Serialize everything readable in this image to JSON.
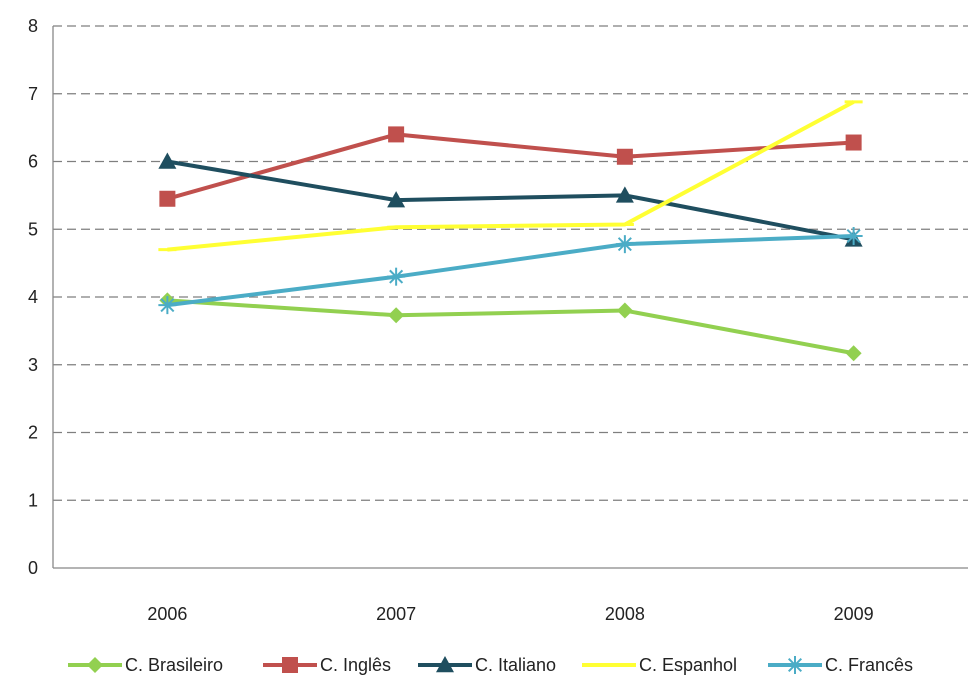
{
  "chart_data": {
    "type": "line",
    "title": "",
    "xlabel": "",
    "ylabel": "",
    "categories": [
      "2006",
      "2007",
      "2008",
      "2009"
    ],
    "ylim": [
      0,
      8
    ],
    "yticks": [
      "0",
      "1",
      "2",
      "3",
      "4",
      "5",
      "6",
      "7",
      "8"
    ],
    "grid": "horizontal-dashed",
    "legend_position": "bottom",
    "series": [
      {
        "name": "C. Brasileiro",
        "color": "#92d050",
        "marker": "diamond",
        "values": [
          3.95,
          3.73,
          3.8,
          3.17
        ]
      },
      {
        "name": "C. Inglês",
        "color": "#c0504d",
        "marker": "square",
        "values": [
          5.45,
          6.4,
          6.07,
          6.28
        ]
      },
      {
        "name": "C. Italiano",
        "color": "#1f4e5f",
        "marker": "triangle",
        "values": [
          6.0,
          5.43,
          5.5,
          4.85
        ]
      },
      {
        "name": "C. Espanhol",
        "color": "#ffff33",
        "marker": "dash",
        "values": [
          4.7,
          5.03,
          5.07,
          6.88
        ]
      },
      {
        "name": "C. Francês",
        "color": "#4bacc6",
        "marker": "star",
        "values": [
          3.88,
          4.3,
          4.78,
          4.9
        ]
      }
    ]
  }
}
